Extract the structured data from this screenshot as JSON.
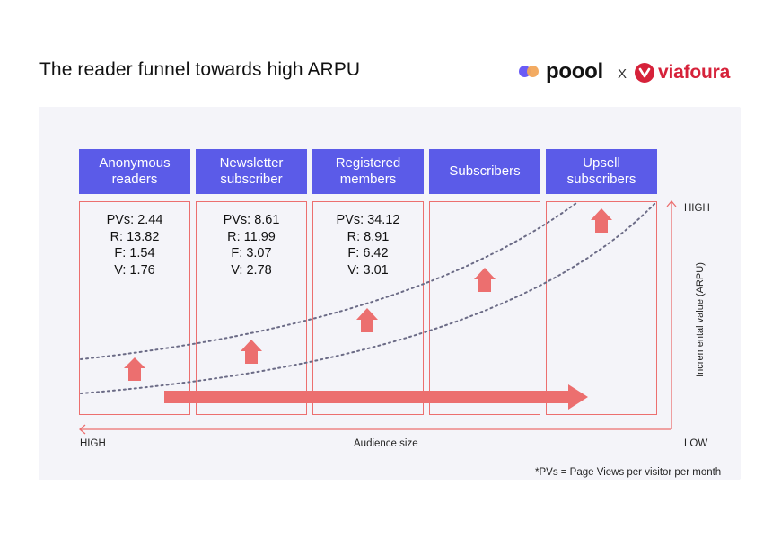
{
  "title": "The reader funnel towards high ARPU",
  "brands": {
    "left": "poool",
    "separator": "X",
    "right": "viafoura"
  },
  "stages": [
    {
      "label": "Anonymous readers",
      "metrics": [
        "PVs: 2.44",
        "R: 13.82",
        "F: 1.54",
        "V: 1.76"
      ]
    },
    {
      "label": "Newsletter subscriber",
      "metrics": [
        "PVs: 8.61",
        "R: 11.99",
        "F: 3.07",
        "V: 2.78"
      ]
    },
    {
      "label": "Registered members",
      "metrics": [
        "PVs: 34.12",
        "R: 8.91",
        "F: 6.42",
        "V: 3.01"
      ]
    },
    {
      "label": "Subscribers",
      "metrics": []
    },
    {
      "label": "Upsell subscribers",
      "metrics": []
    }
  ],
  "axes": {
    "x_title": "Audience size",
    "x_left": "HIGH",
    "x_right": "LOW",
    "y_title": "Incremental value (ARPU)",
    "y_top": "HIGH"
  },
  "footnote": "*PVs = Page Views per visitor per month",
  "colors": {
    "header": "#5b5be8",
    "accent": "#ec6f6f",
    "dotted": "#6b6b86",
    "panel": "#f4f4f9",
    "via_red": "#d6223a"
  }
}
